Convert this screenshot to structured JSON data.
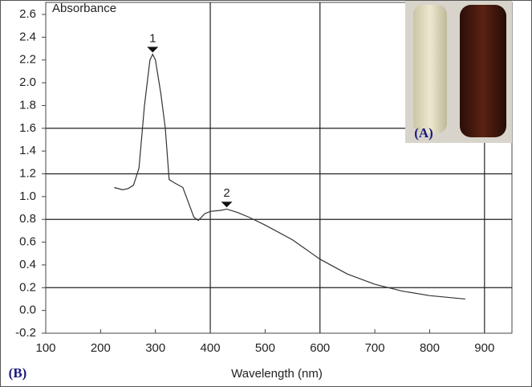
{
  "chart_data": {
    "type": "line",
    "y_label": "Absorbance",
    "x_label": "Wavelength (nm)",
    "panel_labels": [
      "(A)",
      "(B)"
    ],
    "x": [
      225,
      240,
      250,
      260,
      270,
      280,
      290,
      295,
      300,
      310,
      318,
      325,
      335,
      350,
      360,
      370,
      378,
      390,
      400,
      420,
      430,
      450,
      470,
      500,
      550,
      600,
      650,
      700,
      750,
      800,
      865
    ],
    "series": [
      {
        "color": "#333333",
        "values": [
          1.08,
          1.06,
          1.07,
          1.1,
          1.25,
          1.8,
          2.2,
          2.25,
          2.2,
          1.9,
          1.6,
          1.15,
          1.12,
          1.08,
          0.95,
          0.82,
          0.79,
          0.85,
          0.87,
          0.88,
          0.89,
          0.86,
          0.82,
          0.75,
          0.62,
          0.45,
          0.32,
          0.23,
          0.17,
          0.13,
          0.1
        ]
      }
    ],
    "peaks": [
      {
        "label": "1",
        "x": 295,
        "y": 2.28
      },
      {
        "label": "2",
        "x": 430,
        "y": 0.92
      }
    ],
    "xlim": [
      100,
      950
    ],
    "ylim": [
      -0.2,
      2.6
    ],
    "xticks": [
      100,
      200,
      300,
      400,
      500,
      600,
      700,
      800,
      900
    ],
    "yticks": [
      -0.2,
      {
        "value": 0,
        "label": "0.0"
      },
      0.2,
      0.4,
      0.6,
      0.8,
      {
        "value": 1,
        "label": "1.0"
      },
      1.2,
      1.4,
      1.6,
      1.8,
      {
        "value": 2,
        "label": "2.0"
      },
      2.2,
      2.4,
      2.6
    ],
    "grid_x": [
      400,
      600,
      900
    ],
    "grid_y": [
      0.2,
      0.8,
      1.2,
      1.6
    ]
  }
}
